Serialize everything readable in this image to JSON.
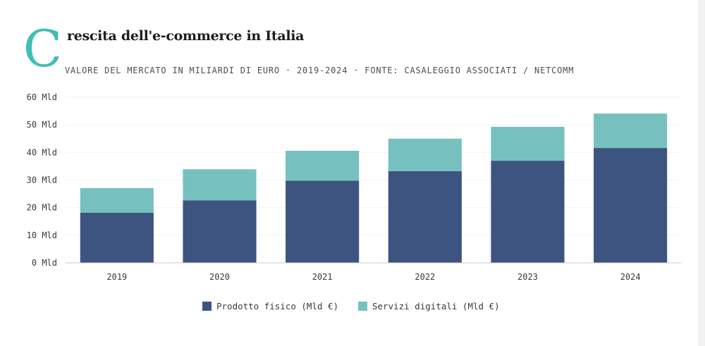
{
  "header": {
    "dropcap": "C",
    "title_rest": "rescita dell'e-commerce in Italia",
    "subtitle": "VALORE DEL MERCATO IN MILIARDI DI EURO · 2019-2024 · FONTE: CASALEGGIO ASSOCIATI / NETCOMM"
  },
  "colors": {
    "accent": "#41bdb9",
    "series_physical": "#3d5480",
    "series_digital": "#76c1bf",
    "axis": "#c9c9c9",
    "grid": "#f2f2f2",
    "text": "#3a3a3a"
  },
  "chart_data": {
    "type": "bar",
    "stacked": true,
    "categories": [
      "2019",
      "2020",
      "2021",
      "2022",
      "2023",
      "2024"
    ],
    "series": [
      {
        "name": "Prodotto fisico (Mld €)",
        "values": [
          18.2,
          22.6,
          29.8,
          33.2,
          37.0,
          41.6
        ]
      },
      {
        "name": "Servizi digitali (Mld €)",
        "values": [
          8.9,
          11.3,
          10.8,
          11.8,
          12.3,
          12.5
        ]
      }
    ],
    "ylim": [
      0,
      60
    ],
    "yticks": [
      0,
      10,
      20,
      30,
      40,
      50,
      60
    ],
    "ytick_labels": [
      "0 Mld",
      "10 Mld",
      "20 Mld",
      "30 Mld",
      "40 Mld",
      "50 Mld",
      "60 Mld"
    ],
    "grid": true,
    "legend": "bottom-center"
  }
}
